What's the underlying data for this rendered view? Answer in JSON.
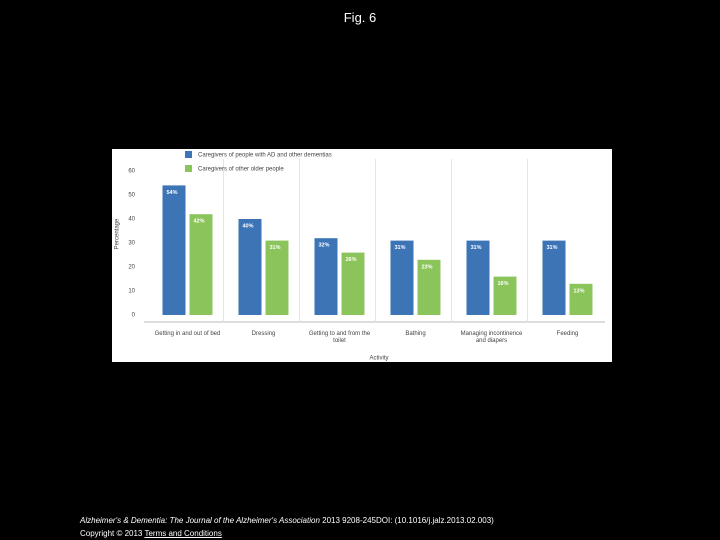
{
  "page": {
    "title": "Fig. 6",
    "journal": "Alzheimer's & Dementia: The Journal of the Alzheimer's Association",
    "citation": "2013 9208-245DOI: (10.1016/j.jalz.2013.02.003)",
    "copyright": "Copyright © 2013",
    "link": "Terms and Conditions"
  },
  "chart_data": {
    "type": "bar",
    "x_label": "Activity",
    "y_label": "Percentage",
    "categories": [
      "Getting in and out of bed",
      "Dressing",
      "Getting to and from the toilet",
      "Bathing",
      "Managing incontinence and diapers",
      "Feeding"
    ],
    "series": [
      {
        "name": "Caregivers of people with AD and other dementias",
        "color": "#3d74b6",
        "values": [
          54,
          40,
          32,
          31,
          31,
          31
        ],
        "value_labels": [
          "54%",
          "40%",
          "32%",
          "31%",
          "31%",
          "31%"
        ]
      },
      {
        "name": "Caregivers of other older people",
        "color": "#8cc45c",
        "values": [
          42,
          31,
          26,
          23,
          16,
          13
        ],
        "value_labels": [
          "42%",
          "31%",
          "26%",
          "23%",
          "16%",
          "13%"
        ]
      }
    ],
    "ylim": [
      0,
      60
    ],
    "yticks": [
      0,
      10,
      20,
      30,
      40,
      50,
      60
    ],
    "grid": false
  }
}
